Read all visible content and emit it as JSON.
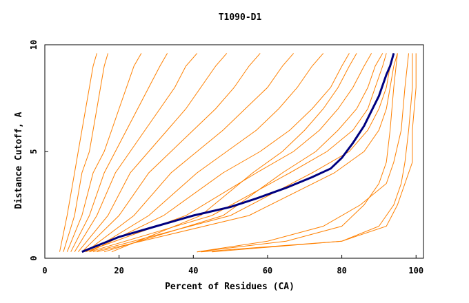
{
  "chart_data": {
    "type": "line",
    "title": "T1090-D1",
    "xlabel": "Percent of Residues (CA)",
    "ylabel": "Distance Cutoff, A",
    "xlim": [
      0,
      102
    ],
    "ylim": [
      0,
      10
    ],
    "xticks": [
      0,
      20,
      40,
      60,
      80,
      100
    ],
    "yticks": [
      0,
      5,
      10
    ],
    "grid": false,
    "legend": "none",
    "colors": {
      "models": "#ff8000",
      "highlight": "#00007f",
      "axis": "#000000"
    },
    "series": [
      {
        "x": [
          4,
          6,
          8,
          9,
          10,
          11,
          12,
          13,
          14
        ],
        "y": [
          0.3,
          2,
          4,
          5,
          6,
          7,
          8,
          9,
          9.6
        ]
      },
      {
        "x": [
          5,
          8,
          10,
          12,
          13,
          14,
          15,
          16,
          17
        ],
        "y": [
          0.3,
          2,
          4,
          5,
          6,
          7,
          8,
          9,
          9.6
        ]
      },
      {
        "x": [
          6,
          10,
          13,
          16,
          18,
          20,
          22,
          24,
          26
        ],
        "y": [
          0.3,
          2,
          4,
          5,
          6,
          7,
          8,
          9,
          9.6
        ]
      },
      {
        "x": [
          7,
          12,
          16,
          19,
          22,
          25,
          28,
          31,
          33
        ],
        "y": [
          0.3,
          2,
          4,
          5,
          6,
          7,
          8,
          9,
          9.6
        ]
      },
      {
        "x": [
          8,
          14,
          19,
          23,
          27,
          31,
          35,
          38,
          41
        ],
        "y": [
          0.3,
          2,
          4,
          5,
          6,
          7,
          8,
          9,
          9.6
        ]
      },
      {
        "x": [
          9,
          17,
          23,
          28,
          33,
          38,
          42,
          46,
          49
        ],
        "y": [
          0.3,
          2,
          4,
          5,
          6,
          7,
          8,
          9,
          9.6
        ]
      },
      {
        "x": [
          10,
          20,
          28,
          34,
          40,
          46,
          51,
          55,
          58
        ],
        "y": [
          0.3,
          2,
          4,
          5,
          6,
          7,
          8,
          9,
          9.6
        ]
      },
      {
        "x": [
          11,
          24,
          34,
          41,
          48,
          54,
          60,
          64,
          67
        ],
        "y": [
          0.3,
          2,
          4,
          5,
          6,
          7,
          8,
          9,
          9.6
        ]
      },
      {
        "x": [
          12,
          28,
          41,
          49,
          57,
          63,
          68,
          72,
          75
        ],
        "y": [
          0.3,
          2,
          4,
          5,
          6,
          7,
          8,
          9,
          9.6
        ]
      },
      {
        "x": [
          12,
          32,
          48,
          58,
          66,
          72,
          77,
          80,
          82
        ],
        "y": [
          0.3,
          2,
          4,
          5,
          6,
          7,
          8,
          9,
          9.6
        ]
      },
      {
        "x": [
          11,
          38,
          57,
          67,
          74,
          79,
          83,
          86,
          88
        ],
        "y": [
          0.3,
          2,
          4,
          5,
          6,
          7,
          8,
          9,
          9.6
        ]
      },
      {
        "x": [
          12,
          45,
          66,
          76,
          83,
          87,
          89,
          91,
          92
        ],
        "y": [
          0.3,
          2,
          4,
          5,
          6,
          7,
          8,
          9,
          9.6
        ]
      },
      {
        "x": [
          13,
          50,
          72,
          82,
          87,
          90,
          92,
          93,
          94
        ],
        "y": [
          0.3,
          2,
          4,
          5,
          6,
          7,
          8,
          9,
          9.6
        ]
      },
      {
        "x": [
          14,
          55,
          78,
          86,
          90,
          92,
          93,
          94,
          95
        ],
        "y": [
          0.3,
          2,
          4,
          5,
          6,
          7,
          8,
          9,
          9.6
        ]
      },
      {
        "x": [
          16,
          48,
          64,
          73,
          79,
          84,
          87,
          89,
          91
        ],
        "y": [
          0.3,
          2,
          4,
          5,
          6,
          7,
          8,
          9,
          9.6
        ]
      },
      {
        "x": [
          18,
          42,
          56,
          64,
          70,
          75,
          79,
          82,
          84
        ],
        "y": [
          0.3,
          2,
          4,
          5,
          6,
          7,
          8,
          9,
          9.6
        ]
      },
      {
        "x": [
          41,
          65,
          80,
          86,
          90,
          92,
          93,
          94,
          95
        ],
        "y": [
          0.3,
          0.8,
          1.5,
          2.5,
          3.5,
          4.5,
          6,
          8,
          9.6
        ]
      },
      {
        "x": [
          41,
          60,
          75,
          85,
          92,
          94,
          96,
          97,
          98
        ],
        "y": [
          0.3,
          0.8,
          1.5,
          2.5,
          3.5,
          4.5,
          6,
          8,
          9.6
        ]
      },
      {
        "x": [
          42,
          80,
          90,
          94,
          96,
          97,
          98,
          99,
          99
        ],
        "y": [
          0.3,
          0.8,
          1.5,
          2.5,
          3.5,
          4.5,
          6,
          8,
          9.6
        ]
      },
      {
        "x": [
          45,
          80,
          92,
          95,
          97,
          99,
          99,
          100,
          100
        ],
        "y": [
          0.3,
          0.8,
          1.5,
          2.5,
          3.5,
          4.5,
          6,
          8,
          9.6
        ]
      }
    ],
    "highlight_series": {
      "x": [
        10,
        20,
        30,
        40,
        50,
        57,
        65,
        72,
        77,
        80,
        83,
        86,
        88,
        90,
        91,
        92,
        93,
        94
      ],
      "y": [
        0.3,
        1.0,
        1.5,
        2.0,
        2.4,
        2.8,
        3.3,
        3.8,
        4.2,
        4.7,
        5.4,
        6.2,
        6.9,
        7.6,
        8.1,
        8.6,
        9.0,
        9.6
      ]
    }
  }
}
